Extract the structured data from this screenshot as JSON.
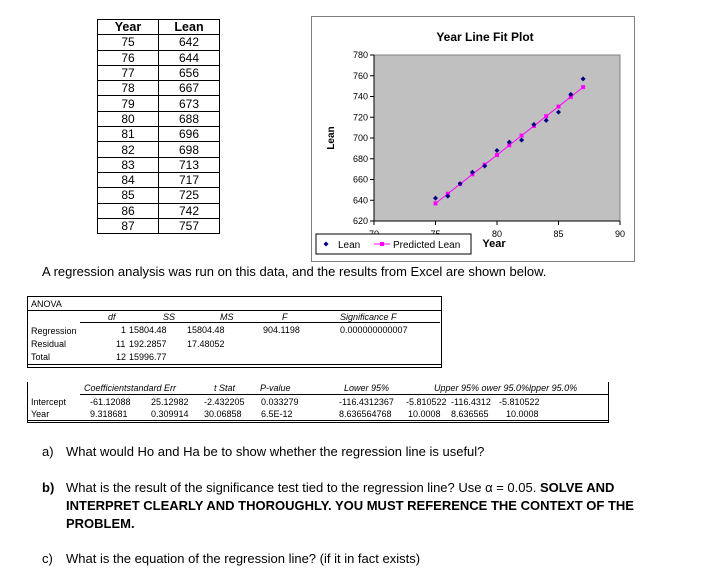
{
  "table": {
    "headers": [
      "Year",
      "Lean"
    ],
    "rows": [
      [
        "75",
        "642"
      ],
      [
        "76",
        "644"
      ],
      [
        "77",
        "656"
      ],
      [
        "78",
        "667"
      ],
      [
        "79",
        "673"
      ],
      [
        "80",
        "688"
      ],
      [
        "81",
        "696"
      ],
      [
        "82",
        "698"
      ],
      [
        "83",
        "713"
      ],
      [
        "84",
        "717"
      ],
      [
        "85",
        "725"
      ],
      [
        "86",
        "742"
      ],
      [
        "87",
        "757"
      ]
    ]
  },
  "chart_data": {
    "type": "scatter",
    "title": "Year Line Fit  Plot",
    "xlabel": "Year",
    "ylabel": "Lean",
    "xlim": [
      70,
      90
    ],
    "ylim": [
      620,
      780
    ],
    "x_ticks": [
      "70",
      "75",
      "80",
      "85",
      "90"
    ],
    "y_ticks": [
      "620",
      "640",
      "660",
      "680",
      "700",
      "720",
      "740",
      "760",
      "780"
    ],
    "legend_position": "bottom",
    "series": [
      {
        "name": "Lean",
        "marker": "diamond",
        "color": "#000080",
        "x": [
          75,
          76,
          77,
          78,
          79,
          80,
          81,
          82,
          83,
          84,
          85,
          86,
          87
        ],
        "y": [
          642,
          644,
          656,
          667,
          673,
          688,
          696,
          698,
          713,
          717,
          725,
          742,
          757
        ]
      },
      {
        "name": "Predicted Lean",
        "marker": "square-line",
        "color": "#ff00ff",
        "x": [
          75,
          76,
          77,
          78,
          79,
          80,
          81,
          82,
          83,
          84,
          85,
          86,
          87
        ],
        "y": [
          637.0,
          646.3,
          655.6,
          665.0,
          674.3,
          683.6,
          693.0,
          702.3,
          711.6,
          721.0,
          730.3,
          739.6,
          749.0
        ]
      }
    ],
    "plot_area_color": "#c0c0c0"
  },
  "sentence": "A regression analysis was run on this data, and the results from Excel are shown below.",
  "anova": {
    "title": "ANOVA",
    "headers": [
      "df",
      "SS",
      "MS",
      "F",
      "Significance F"
    ],
    "rows": [
      {
        "label": "Regression",
        "df": "1",
        "ss": "15804.48",
        "ms": "15804.48",
        "f": "904.1198",
        "sig": "0.000000000007"
      },
      {
        "label": "Residual",
        "df": "11",
        "ss": "192.2857",
        "ms": "17.48052"
      },
      {
        "label": "Total",
        "df": "12",
        "ss": "15996.77"
      }
    ]
  },
  "coefficients": {
    "headers": [
      "Coefficientstandard Err",
      "t Stat",
      "P-value",
      "Lower 95%",
      "Upper 95% ower 95.0%lpper 95.0%"
    ],
    "rows": [
      {
        "label": "Intercept",
        "coef": "-61.12088",
        "se": "25.12982",
        "t": "-2.432205",
        "p": "0.033279",
        "lower": "-116.4312367",
        "upper": "-5.810522",
        "lower2": "-116.4312",
        "upper2": "-5.810522"
      },
      {
        "label": "Year",
        "coef": "9.318681",
        "se": "0.309914",
        "t": "30.06858",
        "p": "6.5E-12",
        "lower": "8.636564768",
        "upper": "10.0008",
        "lower2": "8.636565",
        "upper2": "10.0008"
      }
    ]
  },
  "questions": {
    "a_label": "a)",
    "a_text": "What would Ho and Ha be to show whether the regression line is useful?",
    "b_label": "b)",
    "b_line1": "What is the result of the significance test tied to the regression line?  Use α = 0.05.  SOLVE AND",
    "b_line2": "INTERPRET CLEARLY AND THOROUGHLY.  YOU MUST REFERENCE THE CONTEXT OF THE",
    "b_line3": "PROBLEM.",
    "c_label": "c)",
    "c_text": "What is the equation of the regression line?  (if it in fact exists)"
  }
}
